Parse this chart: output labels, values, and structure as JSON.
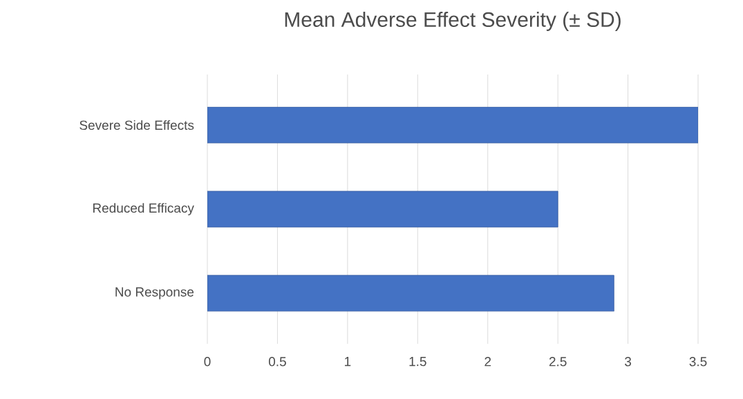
{
  "chart_data": {
    "type": "bar",
    "orientation": "horizontal",
    "title": "Mean Adverse Effect Severity (± SD)",
    "categories": [
      "Severe Side Effects",
      "Reduced Efficacy",
      "No Response"
    ],
    "values": [
      3.5,
      2.5,
      2.9
    ],
    "color": "#4472c4",
    "xlim": [
      0,
      3.5
    ],
    "xticks": [
      0,
      0.5,
      1,
      1.5,
      2,
      2.5,
      3,
      3.5
    ],
    "grid": "x"
  }
}
